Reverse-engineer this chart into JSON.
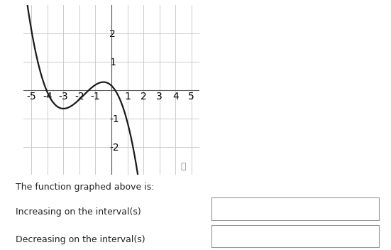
{
  "title_text": "The function graphed above is:",
  "increasing_label": "Increasing on the interval(s)",
  "decreasing_label": "Decreasing on the interval(s)",
  "xlim": [
    -5.5,
    5.5
  ],
  "ylim": [
    -3.0,
    3.0
  ],
  "xticks": [
    -5,
    -4,
    -3,
    -2,
    -1,
    1,
    2,
    3,
    4,
    5
  ],
  "yticks": [
    -2,
    -1,
    1,
    2
  ],
  "bg_color": "#ffffff",
  "curve_color": "#1a1a1a",
  "grid_color": "#cccccc",
  "axis_color": "#555555",
  "curve_linewidth": 1.6,
  "fig_width": 5.51,
  "fig_height": 3.52,
  "dpi": 100,
  "k": 0.36,
  "crit1": -3.0,
  "crit2": -0.5,
  "local_max_y": 0.28
}
